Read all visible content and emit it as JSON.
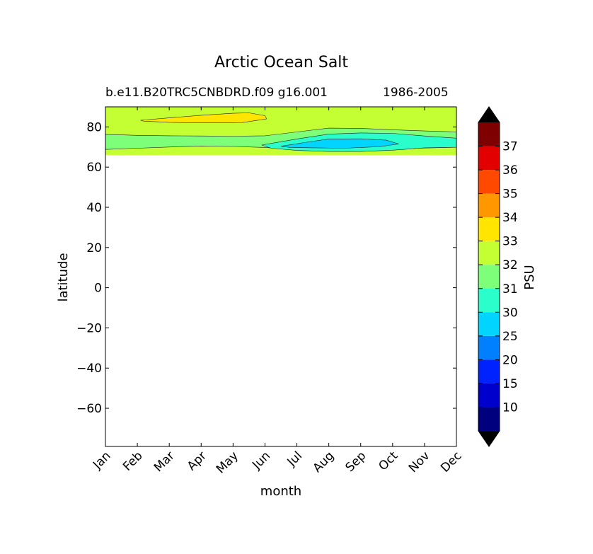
{
  "chart_data": {
    "type": "contour",
    "title": "Arctic Ocean Salt",
    "subtitle_left": "b.e11.B20TRC5CNBDRD.f09 g16.001",
    "subtitle_right": "1986-2005",
    "xlabel": "month",
    "ylabel": "latitude",
    "x_categories": [
      "Jan",
      "Feb",
      "Mar",
      "Apr",
      "May",
      "Jun",
      "Jul",
      "Aug",
      "Sep",
      "Oct",
      "Nov",
      "Dec"
    ],
    "ylim": [
      -79,
      90
    ],
    "y_ticks": [
      80,
      60,
      40,
      20,
      0,
      -20,
      -40,
      -60
    ],
    "y_tick_labels": [
      "80",
      "60",
      "40",
      "20",
      "0",
      "−20",
      "−40",
      "−60"
    ],
    "data_lat_range": [
      66,
      90
    ],
    "colorbar": {
      "label": "PSU",
      "levels": [
        10,
        15,
        20,
        25,
        30,
        31,
        32,
        33,
        34,
        35,
        36,
        37
      ],
      "colors": [
        "#00007f",
        "#0000cd",
        "#0022ff",
        "#0080ff",
        "#00d4ff",
        "#2affcc",
        "#7dff7a",
        "#c4ff33",
        "#ffe500",
        "#ff9800",
        "#ff4800",
        "#e30000",
        "#7f0000"
      ],
      "extend": "both"
    },
    "regions": [
      {
        "level_range": "31-32",
        "color": "#7dff7a",
        "bounds": [
          [
            0,
            76.3
          ],
          [
            1,
            75.8
          ],
          [
            2,
            75.6
          ],
          [
            3,
            75.5
          ],
          [
            4,
            75.4
          ],
          [
            5,
            75.6
          ],
          [
            6,
            77.5
          ],
          [
            7,
            79.4
          ],
          [
            8,
            79.3
          ],
          [
            9,
            78.6
          ],
          [
            10,
            78
          ],
          [
            11,
            77.5
          ]
        ],
        "bounds_low": [
          [
            0,
            68.8
          ],
          [
            1,
            69.4
          ],
          [
            2,
            70
          ],
          [
            3,
            70.5
          ],
          [
            4,
            70.3
          ],
          [
            5,
            69.8
          ],
          [
            6,
            68.6
          ],
          [
            7,
            68
          ],
          [
            8,
            68.2
          ],
          [
            9,
            68.8
          ],
          [
            10,
            69.5
          ],
          [
            11,
            69.9
          ]
        ]
      },
      {
        "level_range": "33-34",
        "color": "#ffe500",
        "outline": [
          [
            1.1,
            83.3
          ],
          [
            2,
            84.5
          ],
          [
            3,
            85.8
          ],
          [
            4,
            86.8
          ],
          [
            4.5,
            87
          ],
          [
            5,
            85.6
          ],
          [
            5.05,
            84
          ],
          [
            4.3,
            82.2
          ],
          [
            3,
            82
          ],
          [
            2,
            82.3
          ],
          [
            1.2,
            82.9
          ]
        ]
      },
      {
        "level_range": "30-31",
        "color": "#2affcc",
        "outline": [
          [
            4.9,
            71
          ],
          [
            6,
            74
          ],
          [
            7,
            76.4
          ],
          [
            8,
            77
          ],
          [
            9,
            76.8
          ],
          [
            10,
            75.5
          ],
          [
            11,
            74.4
          ],
          [
            11,
            69.9
          ],
          [
            10,
            69.6
          ],
          [
            9,
            68.4
          ],
          [
            8,
            67.8
          ],
          [
            7,
            67.8
          ],
          [
            6,
            68.3
          ],
          [
            5.2,
            69.4
          ]
        ]
      },
      {
        "level_range": "25-30",
        "color": "#00d4ff",
        "outline": [
          [
            5.5,
            70.4
          ],
          [
            6.3,
            72.4
          ],
          [
            7,
            74
          ],
          [
            8,
            74.1
          ],
          [
            8.8,
            73.4
          ],
          [
            9.2,
            71.5
          ],
          [
            8.6,
            70.2
          ],
          [
            7.5,
            69.4
          ],
          [
            6.5,
            69.6
          ],
          [
            5.8,
            69.8
          ]
        ]
      }
    ]
  }
}
